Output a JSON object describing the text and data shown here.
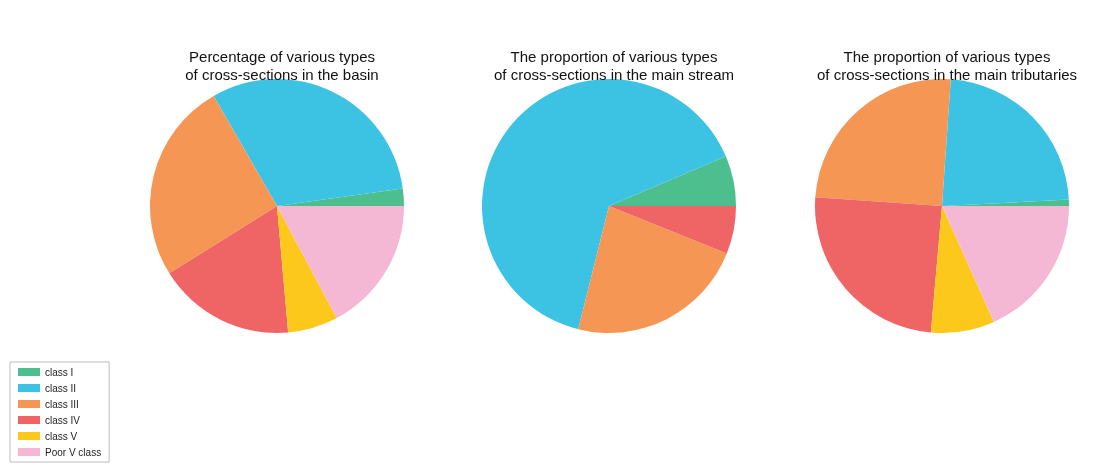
{
  "chart_data": [
    {
      "type": "pie",
      "title": "Percentage of various types\nof cross-sections in the basin",
      "categories": [
        "class I",
        "class II",
        "class III",
        "class IV",
        "class V",
        "Poor V class"
      ],
      "values": [
        2.2,
        31.1,
        25.6,
        17.5,
        6.4,
        17.2
      ],
      "colors": [
        "#4dbf8e",
        "#3cc3e4",
        "#f59654",
        "#ef6566",
        "#fcc81b",
        "#f4b8d5"
      ],
      "legend": "bottom left"
    },
    {
      "type": "pie",
      "title": "The proportion of various types\nof cross-sections in the main stream",
      "categories": [
        null,
        null,
        null,
        null,
        null,
        null
      ],
      "values": [
        6.4,
        64.7,
        22.8,
        6.1,
        0,
        0
      ],
      "colors": [
        "#4dbf8e",
        "#3cc3e4",
        "#f59654",
        "#ef6566",
        "#fcc81b",
        "#f4b8d5"
      ],
      "legend": false
    },
    {
      "type": "pie",
      "title": "The proportion of various types\nof cross-sections in the main tributaries",
      "categories": [
        null,
        null,
        null,
        null,
        null,
        null
      ],
      "values": [
        0.8,
        23.1,
        25,
        24.7,
        8.1,
        18.3
      ],
      "colors": [
        "#4dbf8e",
        "#3cc3e4",
        "#f59654",
        "#ef6566",
        "#fcc81b",
        "#f4b8d5"
      ],
      "legend": false
    }
  ]
}
